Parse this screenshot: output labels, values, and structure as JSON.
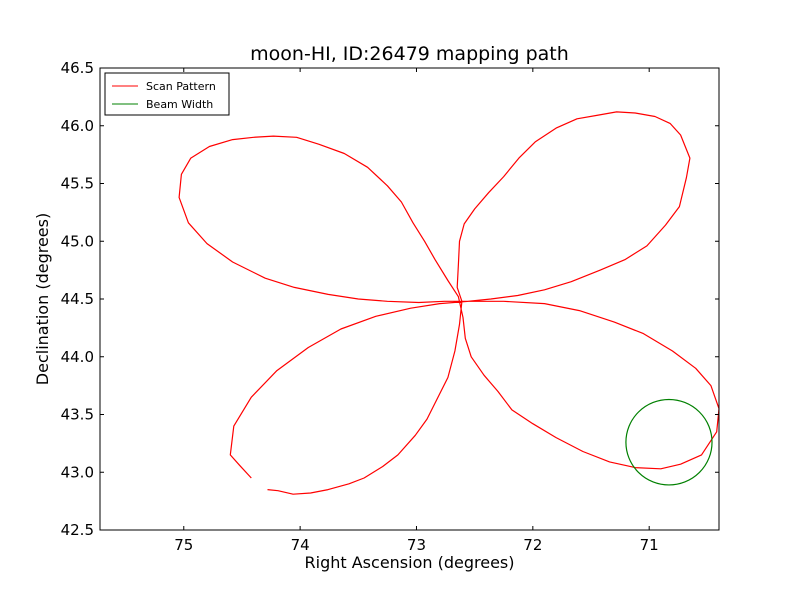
{
  "chart_data": {
    "type": "line",
    "title": "moon-HI, ID:26479 mapping path",
    "xlabel": "Right Ascension (degrees)",
    "ylabel": "Declination (degrees)",
    "xlim": [
      75.72,
      70.4
    ],
    "ylim": [
      42.5,
      46.5
    ],
    "x_inverted": true,
    "xticks": [
      75,
      74,
      73,
      72,
      71
    ],
    "xtick_labels": [
      "75",
      "74",
      "73",
      "72",
      "71"
    ],
    "yticks": [
      42.5,
      43.0,
      43.5,
      44.0,
      44.5,
      45.0,
      45.5,
      46.0,
      46.5
    ],
    "ytick_labels": [
      "42.5",
      "43.0",
      "43.5",
      "44.0",
      "44.5",
      "45.0",
      "45.5",
      "46.0",
      "46.5"
    ],
    "grid": false,
    "legend_position": "top-left",
    "series": [
      {
        "name": "Scan Pattern",
        "color": "#ff0000",
        "segments": [
          [
            [
              74.28,
              42.85
            ],
            [
              74.19,
              42.84
            ],
            [
              74.06,
              42.81
            ],
            [
              73.91,
              42.82
            ],
            [
              73.76,
              42.85
            ],
            [
              73.58,
              42.9
            ],
            [
              73.45,
              42.95
            ],
            [
              73.29,
              43.05
            ],
            [
              73.16,
              43.15
            ],
            [
              73.01,
              43.32
            ],
            [
              72.91,
              43.46
            ],
            [
              72.81,
              43.66
            ],
            [
              72.73,
              43.82
            ],
            [
              72.67,
              44.05
            ],
            [
              72.63,
              44.28
            ],
            [
              72.61,
              44.48
            ],
            [
              72.65,
              44.6
            ],
            [
              72.64,
              44.8
            ],
            [
              72.63,
              45.0
            ],
            [
              72.59,
              45.15
            ],
            [
              72.5,
              45.28
            ],
            [
              72.38,
              45.42
            ],
            [
              72.25,
              45.56
            ],
            [
              72.12,
              45.72
            ],
            [
              71.98,
              45.86
            ],
            [
              71.8,
              45.98
            ],
            [
              71.62,
              46.06
            ],
            [
              71.45,
              46.09
            ],
            [
              71.28,
              46.12
            ],
            [
              71.12,
              46.11
            ],
            [
              70.95,
              46.08
            ],
            [
              70.82,
              46.02
            ],
            [
              70.73,
              45.92
            ],
            [
              70.65,
              45.72
            ],
            [
              70.68,
              45.55
            ],
            [
              70.74,
              45.3
            ],
            [
              70.86,
              45.14
            ],
            [
              71.02,
              44.96
            ],
            [
              71.21,
              44.84
            ],
            [
              71.42,
              44.75
            ],
            [
              71.67,
              44.65
            ],
            [
              71.9,
              44.58
            ],
            [
              72.13,
              44.53
            ],
            [
              72.36,
              44.5
            ],
            [
              72.56,
              44.48
            ],
            [
              72.76,
              44.48
            ],
            [
              72.98,
              44.47
            ],
            [
              73.25,
              44.48
            ],
            [
              73.5,
              44.5
            ],
            [
              73.76,
              44.54
            ],
            [
              74.05,
              44.6
            ],
            [
              74.3,
              44.68
            ],
            [
              74.58,
              44.82
            ],
            [
              74.8,
              44.98
            ],
            [
              74.96,
              45.16
            ],
            [
              75.04,
              45.38
            ],
            [
              75.02,
              45.58
            ],
            [
              74.94,
              45.72
            ],
            [
              74.78,
              45.82
            ],
            [
              74.58,
              45.88
            ],
            [
              74.4,
              45.9
            ],
            [
              74.23,
              45.91
            ],
            [
              74.03,
              45.9
            ],
            [
              73.84,
              45.84
            ],
            [
              73.62,
              45.76
            ],
            [
              73.42,
              45.64
            ],
            [
              73.25,
              45.48
            ],
            [
              73.13,
              45.34
            ],
            [
              73.03,
              45.16
            ],
            [
              72.93,
              45.0
            ],
            [
              72.84,
              44.84
            ],
            [
              72.73,
              44.66
            ],
            [
              72.64,
              44.52
            ],
            [
              72.6,
              44.34
            ],
            [
              72.58,
              44.16
            ],
            [
              72.53,
              44.0
            ],
            [
              72.42,
              43.84
            ],
            [
              72.3,
              43.7
            ],
            [
              72.18,
              43.54
            ],
            [
              72.0,
              43.42
            ],
            [
              71.8,
              43.3
            ],
            [
              71.57,
              43.18
            ],
            [
              71.34,
              43.09
            ],
            [
              71.12,
              43.04
            ],
            [
              70.9,
              43.03
            ],
            [
              70.73,
              43.07
            ],
            [
              70.55,
              43.15
            ],
            [
              70.42,
              43.35
            ],
            [
              70.4,
              43.55
            ],
            [
              70.47,
              43.75
            ],
            [
              70.6,
              43.9
            ],
            [
              70.8,
              44.05
            ],
            [
              71.05,
              44.2
            ],
            [
              71.3,
              44.3
            ],
            [
              71.6,
              44.4
            ],
            [
              71.9,
              44.46
            ],
            [
              72.25,
              44.48
            ],
            [
              72.55,
              44.48
            ],
            [
              72.8,
              44.46
            ],
            [
              73.05,
              44.42
            ],
            [
              73.35,
              44.35
            ],
            [
              73.65,
              44.24
            ],
            [
              73.93,
              44.08
            ],
            [
              74.2,
              43.88
            ],
            [
              74.42,
              43.65
            ],
            [
              74.57,
              43.4
            ],
            [
              74.6,
              43.15
            ],
            [
              74.52,
              43.06
            ],
            [
              74.42,
              42.95
            ]
          ]
        ]
      },
      {
        "name": "Beam Width",
        "color": "#008000",
        "shape": "circle",
        "center": [
          70.83,
          43.26
        ],
        "radius_x": 0.37,
        "radius_y": 0.37
      }
    ]
  }
}
